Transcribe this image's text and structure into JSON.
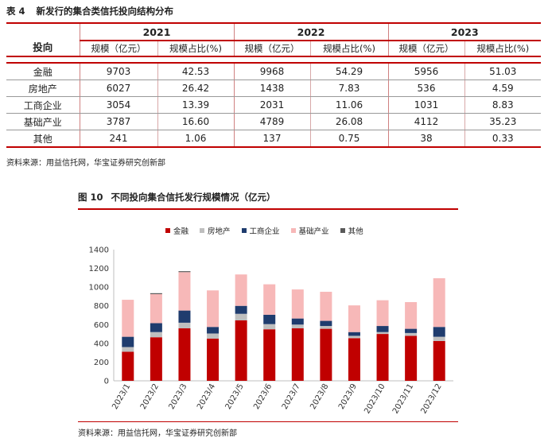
{
  "table": {
    "label": "表 4",
    "title": "新发行的集合类信托投向结构分布",
    "corner_label": "投向",
    "years": [
      "2021",
      "2022",
      "2023"
    ],
    "col_scale": "规模（亿元）",
    "col_share": "规模占比(%)",
    "rows": [
      {
        "name": "金融",
        "v": [
          "9703",
          "42.53",
          "9968",
          "54.29",
          "5956",
          "51.03"
        ]
      },
      {
        "name": "房地产",
        "v": [
          "6027",
          "26.42",
          "1438",
          "7.83",
          "536",
          "4.59"
        ]
      },
      {
        "name": "工商企业",
        "v": [
          "3054",
          "13.39",
          "2031",
          "11.06",
          "1031",
          "8.83"
        ]
      },
      {
        "name": "基础产业",
        "v": [
          "3787",
          "16.60",
          "4789",
          "26.08",
          "4112",
          "35.23"
        ]
      },
      {
        "name": "其他",
        "v": [
          "241",
          "1.06",
          "137",
          "0.75",
          "38",
          "0.33"
        ]
      }
    ],
    "source": "资料来源：用益信托网，华宝证券研究创新部"
  },
  "figure": {
    "label": "图 10",
    "title": "不同投向集合信托发行规模情况（亿元）",
    "source": "资料来源：用益信托网，华宝证券研究创新部"
  },
  "chart_data": {
    "type": "bar",
    "stacked": true,
    "categories": [
      "2023/1",
      "2023/2",
      "2023/3",
      "2023/4",
      "2023/5",
      "2023/6",
      "2023/7",
      "2023/8",
      "2023/9",
      "2023/10",
      "2023/11",
      "2023/12"
    ],
    "series": [
      {
        "name": "金融",
        "color": "#c00000",
        "values": [
          310,
          465,
          560,
          450,
          645,
          550,
          560,
          555,
          455,
          500,
          480,
          425
        ]
      },
      {
        "name": "房地产",
        "color": "#bfbfbf",
        "values": [
          50,
          55,
          60,
          55,
          70,
          55,
          40,
          30,
          25,
          20,
          30,
          45
        ]
      },
      {
        "name": "工商企业",
        "color": "#1f3c6e",
        "values": [
          110,
          95,
          130,
          70,
          85,
          100,
          65,
          55,
          40,
          65,
          45,
          105
        ]
      },
      {
        "name": "基础产业",
        "color": "#f7b8b8",
        "values": [
          395,
          310,
          410,
          390,
          335,
          325,
          310,
          310,
          285,
          275,
          285,
          520
        ]
      },
      {
        "name": "其他",
        "color": "#595959",
        "values": [
          0,
          10,
          10,
          0,
          0,
          0,
          0,
          0,
          0,
          0,
          0,
          0
        ]
      }
    ],
    "ylim": [
      0,
      1400
    ],
    "yticks": [
      0,
      200,
      400,
      600,
      800,
      1000,
      1200,
      1400
    ],
    "grid": false,
    "legend": "top"
  }
}
